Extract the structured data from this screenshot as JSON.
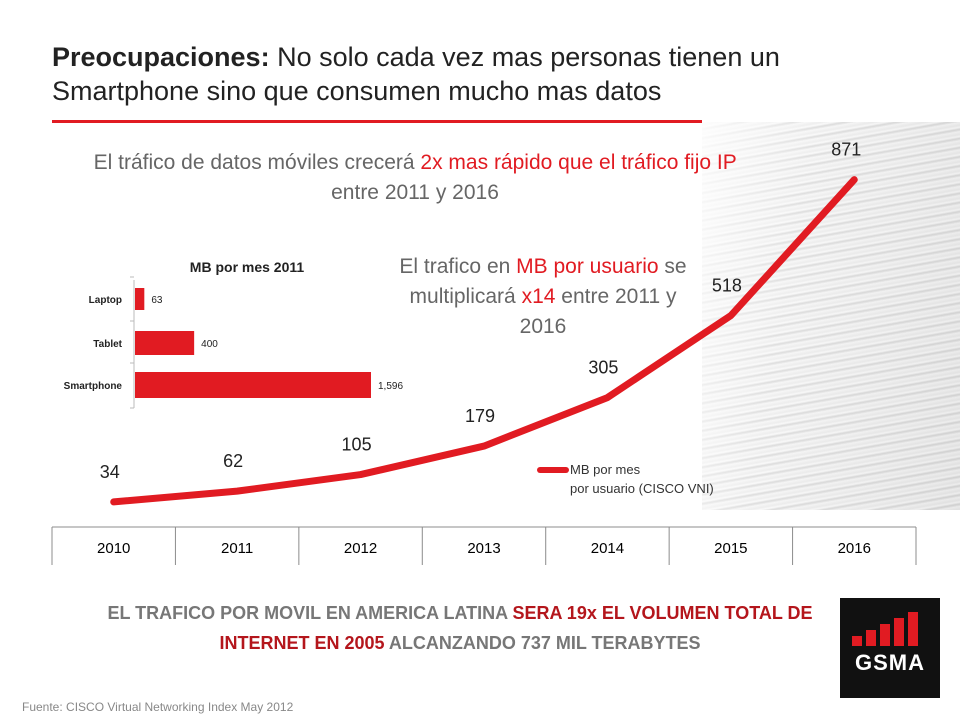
{
  "title": {
    "bold": "Preocupaciones:",
    "rest": " No solo cada vez mas personas tienen un Smartphone sino que consumen mucho mas datos"
  },
  "subtitle1": {
    "p1": "El tráfico de datos móviles crecerá ",
    "p2": "2x mas rápido que el tráfico fijo IP",
    "p3": " entre 2011 y 2016"
  },
  "subtitle2": {
    "p1": "El trafico en ",
    "p2": "MB por usuario",
    "p3": " se multiplicará ",
    "p4": "x14",
    "p5": " entre 2011 y 2016"
  },
  "bottom": {
    "p1": "EL TRAFICO POR MOVIL EN AMERICA LATINA ",
    "p2": "SERA 19x EL VOLUMEN TOTAL DE INTERNET EN 2005",
    "p3": " ALCANZANDO  737 MIL TERABYTES"
  },
  "source": "Fuente: CISCO Virtual Networking Index May 2012",
  "logo_text": "GSMA",
  "colors": {
    "accent": "#e11b22"
  },
  "chart_data": [
    {
      "type": "line",
      "x": [
        "2010",
        "2011",
        "2012",
        "2013",
        "2014",
        "2015",
        "2016"
      ],
      "series": [
        {
          "name": "MB por mes por usuario (CISCO VNI)",
          "values": [
            34,
            62,
            105,
            179,
            305,
            518,
            871
          ]
        }
      ],
      "data_labels": [
        "34",
        "62",
        "105",
        "179",
        "305",
        "518",
        "871"
      ],
      "ylim": [
        0,
        1000
      ],
      "grid": false,
      "legend": "lower-right"
    },
    {
      "type": "bar",
      "orientation": "horizontal",
      "title": "MB por mes 2011",
      "categories": [
        "Laptop",
        "Tablet",
        "Smartphone"
      ],
      "values": [
        63,
        400,
        1596
      ],
      "data_labels": [
        "63",
        "400",
        "1,596"
      ]
    }
  ]
}
